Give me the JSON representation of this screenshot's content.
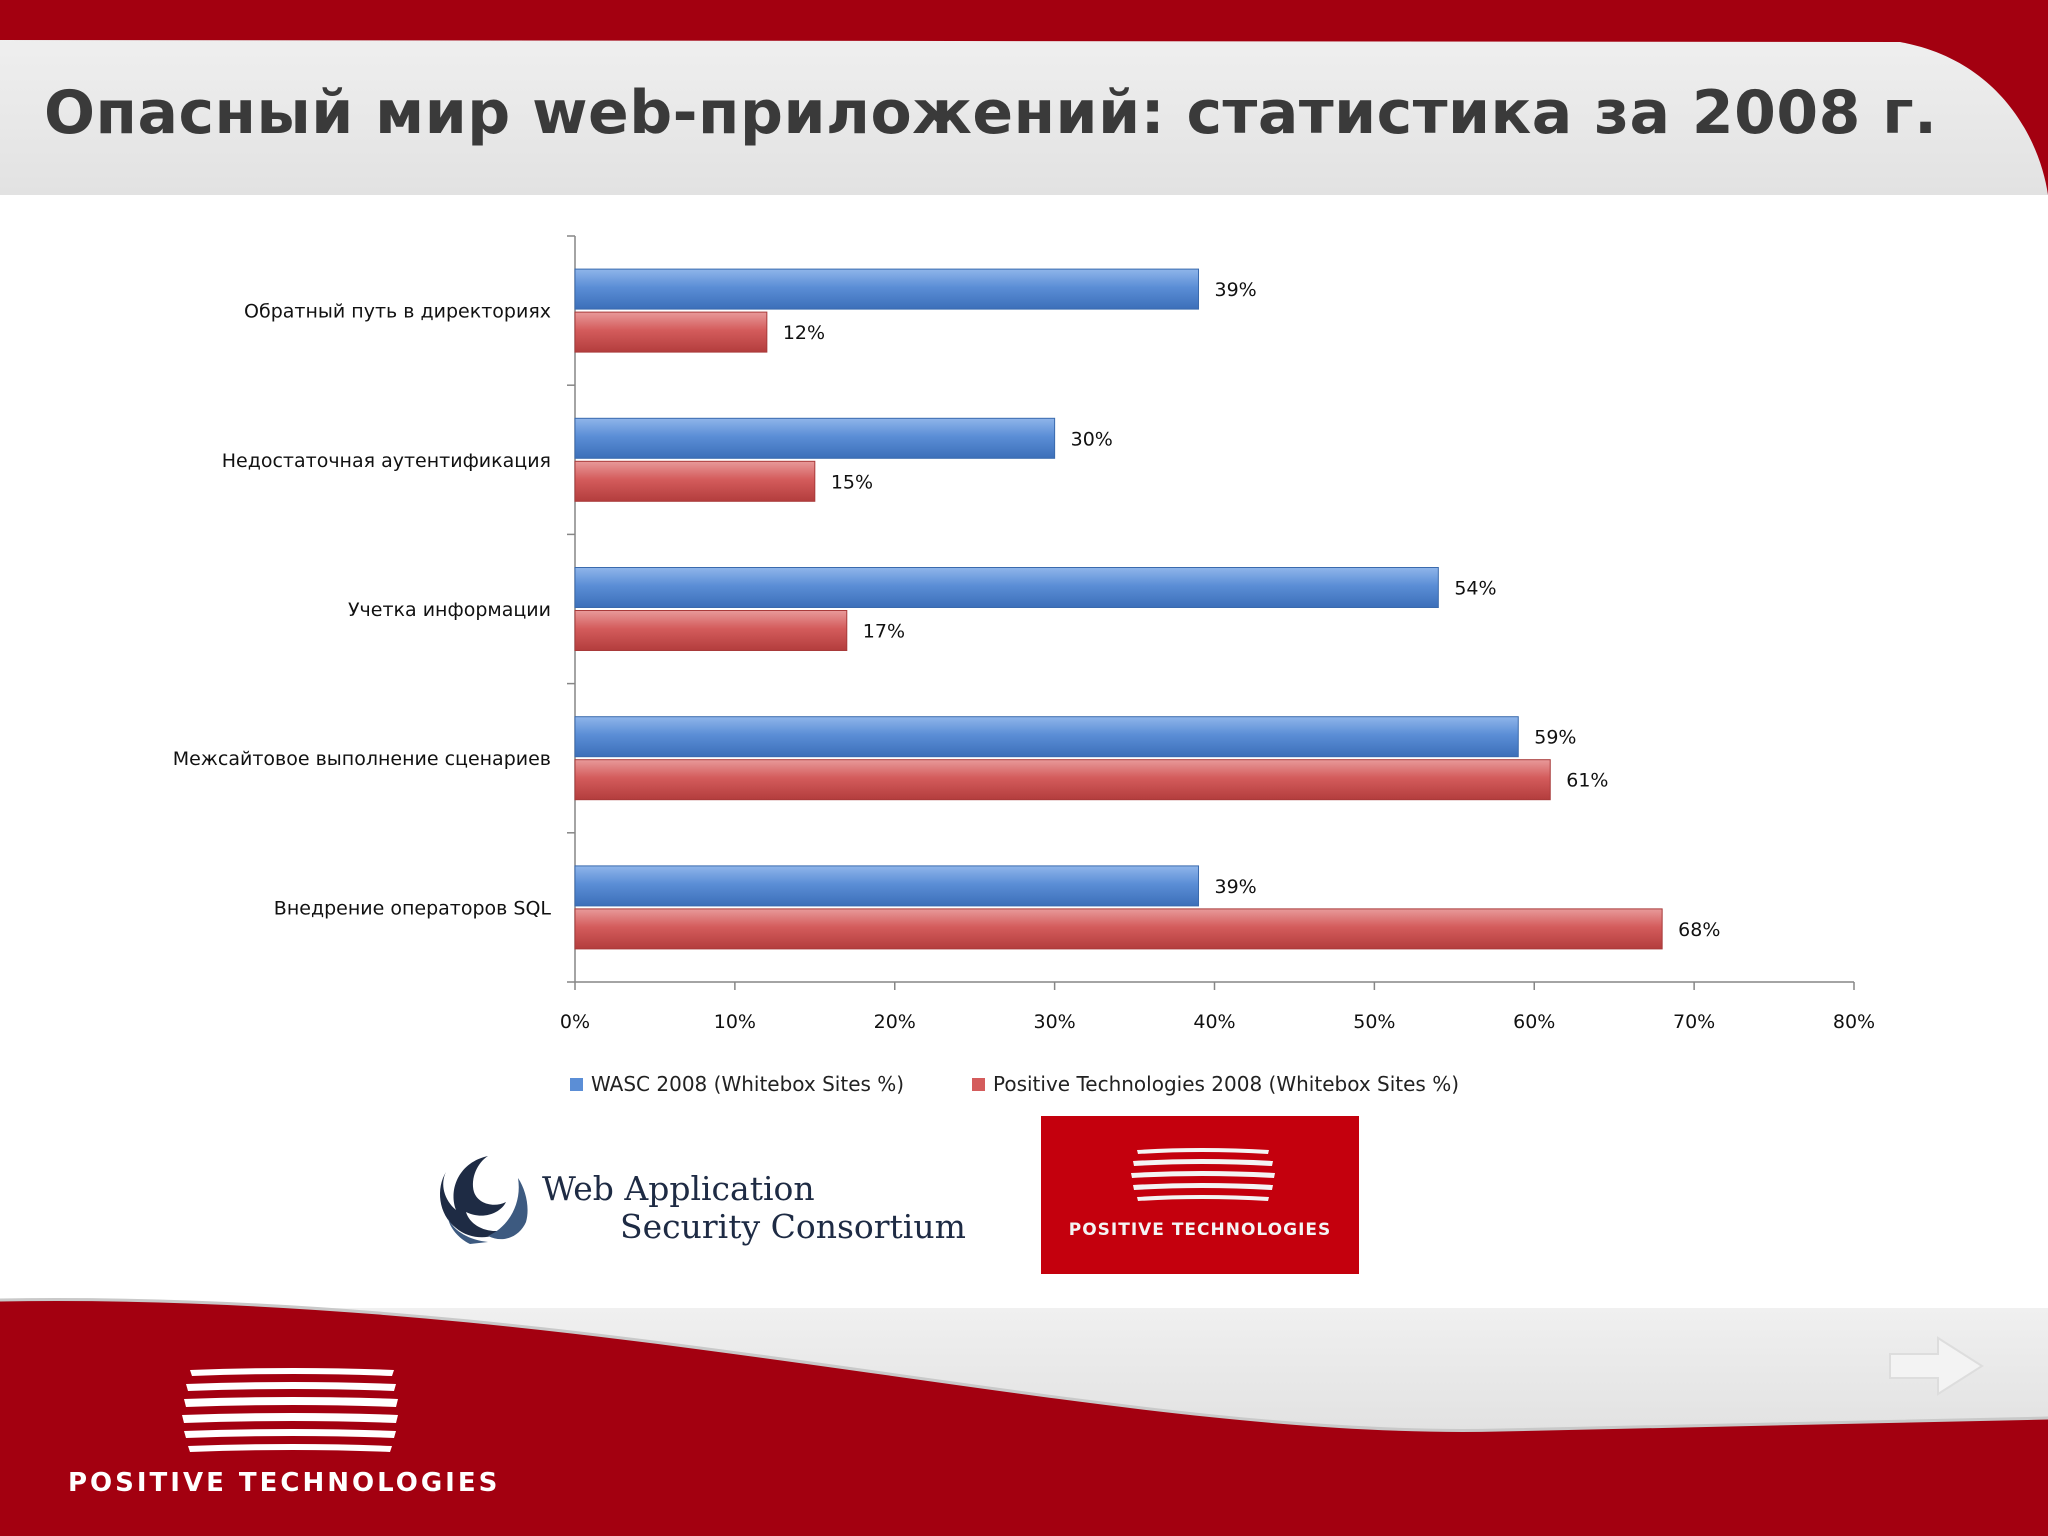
{
  "slide": {
    "title": "Опасный мир web-приложений: статистика за 2008 г."
  },
  "chart_data": {
    "type": "bar",
    "orientation": "horizontal",
    "categories": [
      "Обратный путь в директориях",
      "Недостаточная аутентификация",
      "Учетка информации",
      "Межсайтовое выполнение сценариев",
      "Внедрение операторов SQL"
    ],
    "series": [
      {
        "name": "WASC 2008 (Whitebox Sites %)",
        "values": [
          39,
          30,
          54,
          59,
          39
        ],
        "labels": [
          "39%",
          "30%",
          "54%",
          "59%",
          "39%"
        ],
        "color": "#5b8ed6"
      },
      {
        "name": "Positive Technologies 2008 (Whitebox Sites %)",
        "values": [
          12,
          15,
          17,
          61,
          68
        ],
        "labels": [
          "12%",
          "15%",
          "17%",
          "61%",
          "68%"
        ],
        "color": "#d45c5c"
      }
    ],
    "x_ticks": [
      "0%",
      "10%",
      "20%",
      "30%",
      "40%",
      "50%",
      "60%",
      "70%",
      "80%"
    ],
    "xlim": [
      0,
      80
    ],
    "grid": false,
    "legend_position": "bottom"
  },
  "logos": {
    "wasc": {
      "line1": "Web Application",
      "line2": "Security Consortium"
    },
    "pt_box": {
      "text": "POSITIVE TECHNOLOGIES"
    },
    "footer": {
      "text": "POSITIVE  TECHNOLOGIES"
    }
  },
  "colors": {
    "brand_red": "#a30010",
    "header_grey": "#e6e6e6"
  }
}
